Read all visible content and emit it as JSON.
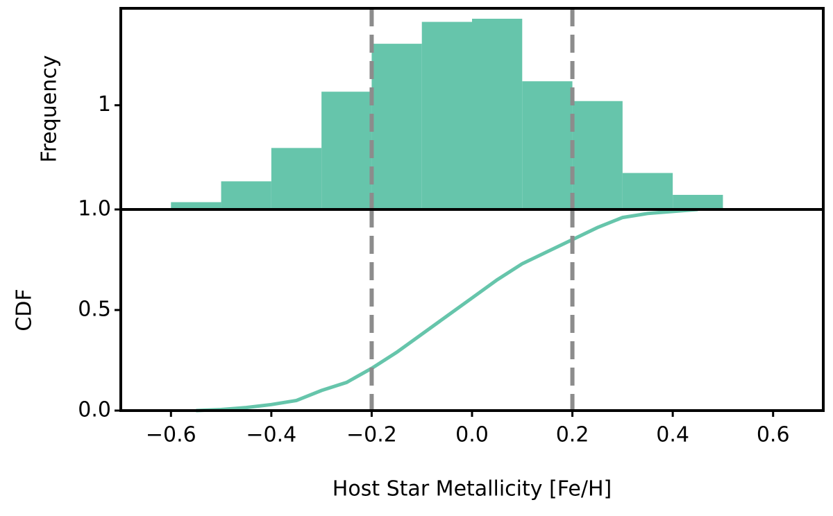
{
  "chart_data": [
    {
      "type": "histogram",
      "ylabel": "Frequency",
      "color": "#66c5ab",
      "bins": [
        -0.6,
        -0.5,
        -0.4,
        -0.3,
        -0.2,
        -0.1,
        0.0,
        0.1,
        0.2,
        0.3,
        0.4,
        0.5
      ],
      "values": [
        0.07,
        0.27,
        0.59,
        1.13,
        1.59,
        1.8,
        1.83,
        1.23,
        1.04,
        0.35,
        0.14
      ],
      "xlim": [
        -0.7,
        0.7
      ],
      "ylim": [
        0,
        1.93
      ],
      "yticks": [
        1
      ],
      "vlines": [
        -0.2,
        0.2
      ],
      "vline_color": "#8c8c8c"
    },
    {
      "type": "line",
      "ylabel": "CDF",
      "xlabel": "Host Star Metallicity [Fe/H]",
      "color": "#66c5ab",
      "x": [
        -0.55,
        -0.5,
        -0.45,
        -0.4,
        -0.35,
        -0.3,
        -0.25,
        -0.2,
        -0.15,
        -0.1,
        -0.05,
        0.0,
        0.05,
        0.1,
        0.15,
        0.2,
        0.25,
        0.3,
        0.35,
        0.4,
        0.45
      ],
      "values": [
        0.0,
        0.005,
        0.015,
        0.03,
        0.05,
        0.1,
        0.14,
        0.21,
        0.29,
        0.38,
        0.47,
        0.56,
        0.65,
        0.73,
        0.79,
        0.85,
        0.91,
        0.96,
        0.98,
        0.99,
        1.0
      ],
      "xlim": [
        -0.7,
        0.7
      ],
      "ylim": [
        0,
        1
      ],
      "xticks": [
        {
          "value": -0.6,
          "label": "−0.6"
        },
        {
          "value": -0.4,
          "label": "−0.4"
        },
        {
          "value": -0.2,
          "label": "−0.2"
        },
        {
          "value": 0.0,
          "label": "0.0"
        },
        0.2,
        0.4,
        0.6
      ],
      "yticks": [
        {
          "value": 0.0,
          "label": "0.0"
        },
        0.5,
        {
          "value": 1.0,
          "label": "1.0"
        }
      ],
      "vlines": [
        -0.2,
        0.2
      ],
      "vline_color": "#8c8c8c"
    }
  ]
}
